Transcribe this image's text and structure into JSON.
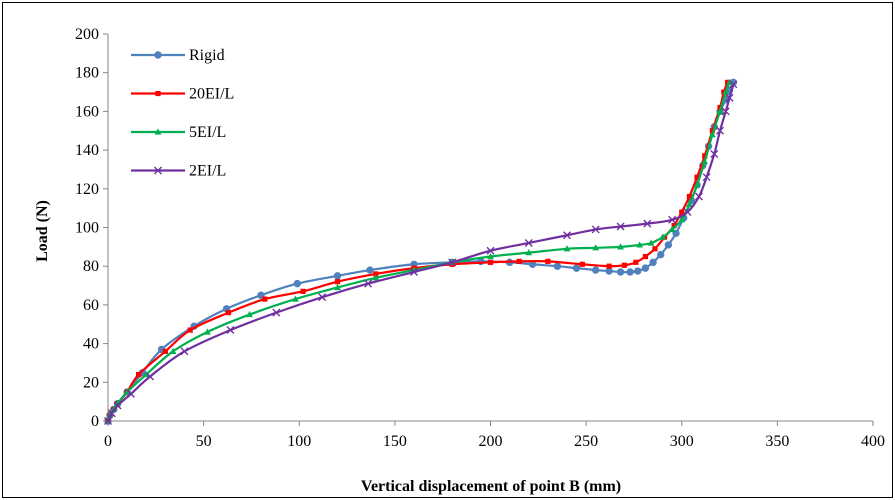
{
  "chart_data": {
    "type": "line",
    "title": "",
    "xlabel": "Vertical displacement of point B (mm)",
    "ylabel": "Load (N)",
    "xlim": [
      0,
      400
    ],
    "ylim": [
      0,
      200
    ],
    "xticks": [
      0,
      50,
      100,
      150,
      200,
      250,
      300,
      350,
      400
    ],
    "yticks": [
      0,
      20,
      40,
      60,
      80,
      100,
      120,
      140,
      160,
      180,
      200
    ],
    "grid": false,
    "legend_position": "top-left",
    "series": [
      {
        "name": "Rigid",
        "color": "#4F81BD",
        "marker": "circle",
        "points": [
          [
            0,
            0
          ],
          [
            1,
            3
          ],
          [
            3,
            6
          ],
          [
            5,
            9
          ],
          [
            10,
            15
          ],
          [
            18,
            25
          ],
          [
            28,
            37
          ],
          [
            45,
            49
          ],
          [
            62,
            58
          ],
          [
            80,
            65
          ],
          [
            99,
            71
          ],
          [
            120,
            75
          ],
          [
            137,
            78
          ],
          [
            160,
            81
          ],
          [
            180,
            82
          ],
          [
            195,
            82.5
          ],
          [
            210,
            82
          ],
          [
            222,
            81
          ],
          [
            235,
            80
          ],
          [
            245,
            79
          ],
          [
            255,
            78
          ],
          [
            262,
            77.5
          ],
          [
            268,
            77
          ],
          [
            273,
            77
          ],
          [
            277,
            77.5
          ],
          [
            281,
            79
          ],
          [
            285,
            82
          ],
          [
            289,
            86
          ],
          [
            293,
            91
          ],
          [
            297,
            97
          ],
          [
            301,
            105
          ],
          [
            305,
            114
          ],
          [
            308,
            122
          ],
          [
            311,
            132
          ],
          [
            314,
            142
          ],
          [
            317,
            152
          ],
          [
            320,
            160
          ],
          [
            323,
            166
          ],
          [
            325,
            171
          ],
          [
            327,
            175
          ]
        ]
      },
      {
        "name": "20EI/L",
        "color": "#FF0000",
        "marker": "square",
        "points": [
          [
            0,
            0
          ],
          [
            1,
            3
          ],
          [
            3,
            6
          ],
          [
            5,
            9
          ],
          [
            10,
            15
          ],
          [
            16,
            24
          ],
          [
            30,
            36
          ],
          [
            43,
            47
          ],
          [
            63,
            56
          ],
          [
            82,
            63
          ],
          [
            102,
            67
          ],
          [
            120,
            72
          ],
          [
            140,
            76
          ],
          [
            160,
            79
          ],
          [
            180,
            81
          ],
          [
            200,
            82
          ],
          [
            215,
            82.5
          ],
          [
            230,
            82.5
          ],
          [
            248,
            81
          ],
          [
            262,
            80
          ],
          [
            270,
            80.5
          ],
          [
            276,
            82
          ],
          [
            281,
            85
          ],
          [
            286,
            89
          ],
          [
            291,
            95
          ],
          [
            296,
            101
          ],
          [
            300,
            108
          ],
          [
            304,
            116
          ],
          [
            308,
            126
          ],
          [
            312,
            137
          ],
          [
            316,
            150
          ],
          [
            320,
            162
          ],
          [
            322,
            170
          ],
          [
            324,
            175
          ]
        ]
      },
      {
        "name": "5EI/L",
        "color": "#00B050",
        "marker": "triangle",
        "points": [
          [
            0,
            0
          ],
          [
            1,
            3
          ],
          [
            3,
            6
          ],
          [
            5,
            9
          ],
          [
            10,
            15
          ],
          [
            20,
            24
          ],
          [
            34,
            36
          ],
          [
            52,
            46
          ],
          [
            74,
            55
          ],
          [
            98,
            63
          ],
          [
            120,
            69
          ],
          [
            140,
            74
          ],
          [
            160,
            78
          ],
          [
            180,
            82
          ],
          [
            200,
            85
          ],
          [
            220,
            87
          ],
          [
            240,
            89
          ],
          [
            255,
            89.5
          ],
          [
            268,
            90
          ],
          [
            278,
            91
          ],
          [
            284,
            92
          ],
          [
            290,
            95
          ],
          [
            295,
            99
          ],
          [
            300,
            104
          ],
          [
            304,
            112
          ],
          [
            308,
            122
          ],
          [
            312,
            134
          ],
          [
            316,
            148
          ],
          [
            320,
            160
          ],
          [
            323,
            170
          ],
          [
            325,
            175
          ]
        ]
      },
      {
        "name": "2EI/L",
        "color": "#7030A0",
        "marker": "x",
        "points": [
          [
            0,
            0
          ],
          [
            2,
            4
          ],
          [
            5,
            8
          ],
          [
            12,
            14
          ],
          [
            22,
            23
          ],
          [
            40,
            36
          ],
          [
            64,
            47
          ],
          [
            88,
            56
          ],
          [
            112,
            64
          ],
          [
            136,
            71
          ],
          [
            160,
            77
          ],
          [
            180,
            82
          ],
          [
            200,
            88
          ],
          [
            220,
            92
          ],
          [
            240,
            96
          ],
          [
            255,
            99
          ],
          [
            268,
            100.5
          ],
          [
            282,
            102
          ],
          [
            295,
            104
          ],
          [
            303,
            108
          ],
          [
            309,
            116
          ],
          [
            313,
            126
          ],
          [
            317,
            138
          ],
          [
            320,
            150
          ],
          [
            323,
            160
          ],
          [
            325,
            167
          ],
          [
            327,
            174
          ]
        ]
      }
    ]
  }
}
